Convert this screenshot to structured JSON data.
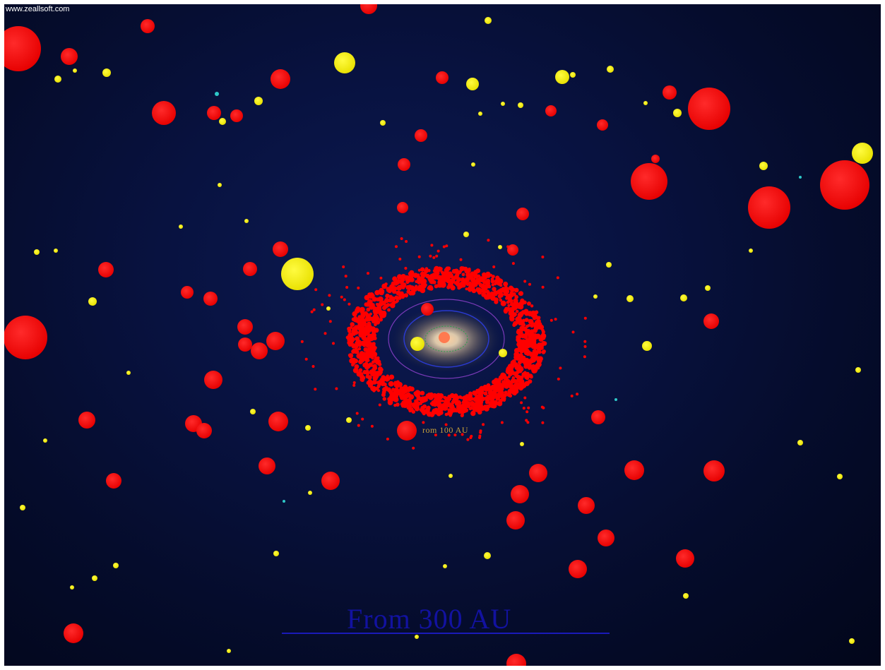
{
  "watermark": "www.zeallsoft.com",
  "scene_labels": {
    "inner_distance": "rom 100 AU",
    "outer_distance": "From 300 AU"
  },
  "colors": {
    "red_body": "#ff0000",
    "yellow_body": "#f2ee0a",
    "cyan_body": "#2ec8c8",
    "title_text": "#1212a0",
    "caption_text": "#c9a23a"
  }
}
